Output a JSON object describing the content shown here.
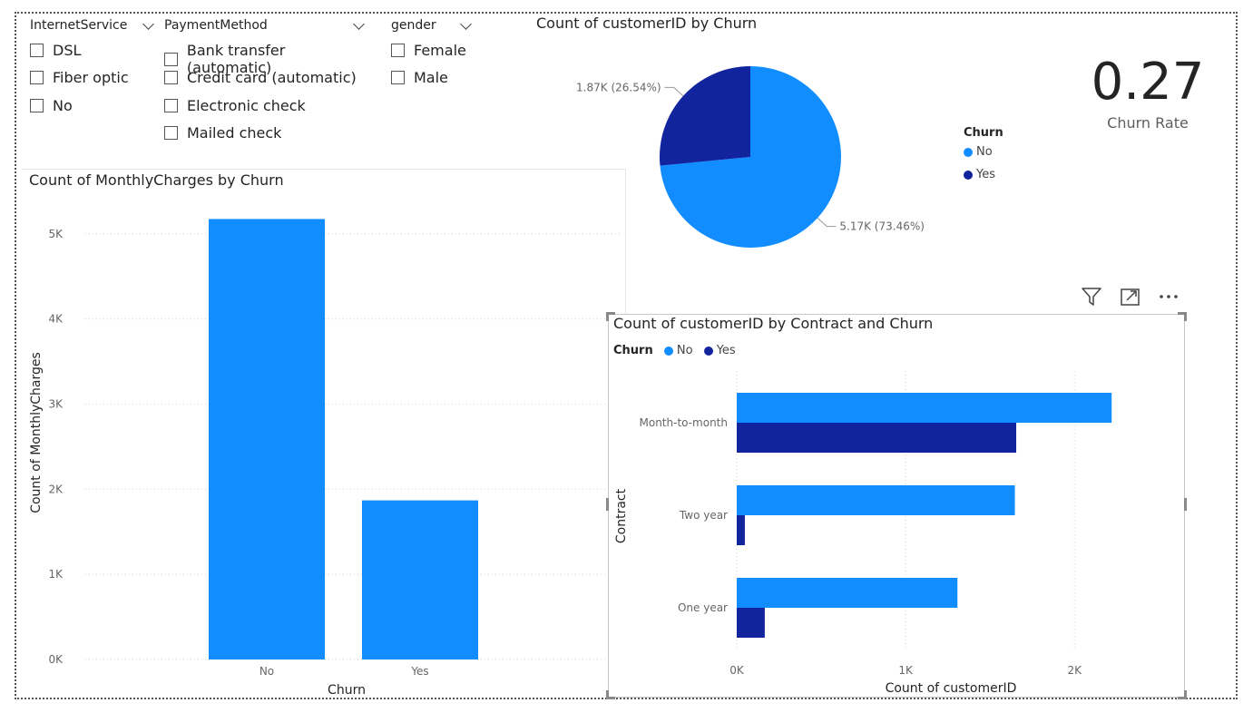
{
  "slicers": [
    {
      "title": "InternetService",
      "options": [
        "DSL",
        "Fiber optic",
        "No"
      ]
    },
    {
      "title": "PaymentMethod",
      "options": [
        "Bank transfer (automatic)",
        "Credit card (automatic)",
        "Electronic check",
        "Mailed check"
      ]
    },
    {
      "title": "gender",
      "options": [
        "Female",
        "Male"
      ]
    }
  ],
  "card": {
    "value": "0.27",
    "label": "Churn Rate"
  },
  "toolbar_icons": [
    "filter-icon",
    "focus-mode-icon",
    "more-options-icon"
  ],
  "chart_data": [
    {
      "type": "bar",
      "title": "Count of MonthlyCharges by Churn",
      "xlabel": "Churn",
      "ylabel": "Count of MonthlyCharges",
      "categories": [
        "No",
        "Yes"
      ],
      "values": [
        5174,
        1869
      ],
      "ylim": [
        0,
        5200
      ],
      "yticks": [
        {
          "v": 0,
          "label": "0K"
        },
        {
          "v": 1000,
          "label": "1K"
        },
        {
          "v": 2000,
          "label": "2K"
        },
        {
          "v": 3000,
          "label": "3K"
        },
        {
          "v": 4000,
          "label": "4K"
        },
        {
          "v": 5000,
          "label": "5K"
        }
      ],
      "color": "#118DFF",
      "grid": true
    },
    {
      "type": "pie",
      "title": "Count of customerID by Churn",
      "legend_title": "Churn",
      "slices": [
        {
          "name": "No",
          "value": 5174,
          "label": "5.17K (73.46%)",
          "color": "#118DFF"
        },
        {
          "name": "Yes",
          "value": 1869,
          "label": "1.87K (26.54%)",
          "color": "#12239E"
        }
      ],
      "legend": "right"
    },
    {
      "type": "bar",
      "orientation": "horizontal",
      "title": "Count of customerID by Contract and Churn",
      "legend_title": "Churn",
      "xlabel": "Count of customerID",
      "ylabel": "Contract",
      "categories": [
        "Month-to-month",
        "Two year",
        "One year"
      ],
      "series": [
        {
          "name": "No",
          "values": [
            2220,
            1647,
            1307
          ],
          "color": "#118DFF"
        },
        {
          "name": "Yes",
          "values": [
            1655,
            48,
            166
          ],
          "color": "#12239E"
        }
      ],
      "xlim": [
        0,
        2450
      ],
      "xticks": [
        {
          "v": 0,
          "label": "0K"
        },
        {
          "v": 1000,
          "label": "1K"
        },
        {
          "v": 2000,
          "label": "2K"
        }
      ],
      "legend": "top-left",
      "grid": true
    }
  ]
}
